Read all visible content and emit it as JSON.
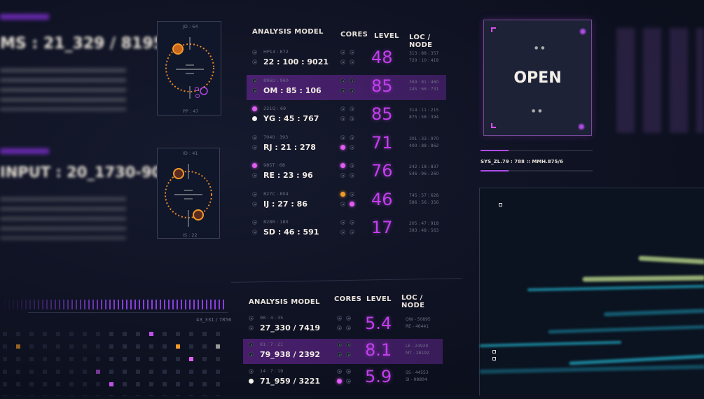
{
  "left": {
    "readout_1": "MS : 21_329 / 8195",
    "readout_2": "INPUT : 20_1730-90"
  },
  "radar_1": {
    "top_label": "JD : 64",
    "bottom_label": "PP : 47"
  },
  "radar_2": {
    "top_label": "ID : 41",
    "bottom_label": "IS : 22"
  },
  "table_1": {
    "headers": {
      "model": "ANALYSIS MODEL",
      "cores": "CORES",
      "level": "LEVEL",
      "loc": "LOC / NODE"
    },
    "rows": [
      {
        "code": "HP14 : 872",
        "model": "22 : 100 : 9021",
        "level": "48",
        "loc1": "313 : 88 : 357",
        "loc2": "720 : 10 : 418",
        "highlight": false,
        "bullets": [
          "off",
          "off"
        ],
        "cores": [
          "off",
          "off",
          "off",
          "off"
        ]
      },
      {
        "code": "896U : 960",
        "model": "OM : 85 : 106",
        "level": "85",
        "loc1": "369 : 81 : 460",
        "loc2": "245 : 66 : 731",
        "highlight": true,
        "bullets": [
          "off",
          "off"
        ],
        "cores": [
          "off",
          "off",
          "off",
          "off"
        ]
      },
      {
        "code": "221Q : 69",
        "model": "YG : 45 : 767",
        "level": "85",
        "loc1": "314 : 11 : 215",
        "loc2": "875 : 58 : 394",
        "highlight": false,
        "bullets": [
          "pink",
          "white"
        ],
        "cores": [
          "off",
          "off",
          "off",
          "off"
        ]
      },
      {
        "code": "7040 : 393",
        "model": "RJ : 21 : 278",
        "level": "71",
        "loc1": "301 : 33 : 970",
        "loc2": "400 : 88 : 862",
        "highlight": false,
        "bullets": [
          "off",
          "off"
        ],
        "cores": [
          "off",
          "off",
          "pink",
          "off"
        ]
      },
      {
        "code": "985T : 68",
        "model": "RE : 23 : 96",
        "level": "76",
        "loc1": "242 : 18 : 837",
        "loc2": "546 : 96 : 260",
        "highlight": false,
        "bullets": [
          "pink",
          "off"
        ],
        "cores": [
          "pink",
          "off",
          "off",
          "off"
        ]
      },
      {
        "code": "827C : 804",
        "model": "IJ : 27 : 86",
        "level": "46",
        "loc1": "745 : 57 : 628",
        "loc2": "586 : 56 : 356",
        "highlight": false,
        "bullets": [
          "off",
          "off"
        ],
        "cores": [
          "orange",
          "off",
          "off",
          "pink"
        ]
      },
      {
        "code": "828R : 180",
        "model": "SD : 46 : 591",
        "level": "17",
        "loc1": "205 : 47 : 918",
        "loc2": "393 : 48 : 563",
        "highlight": false,
        "bullets": [
          "off",
          "off"
        ],
        "cores": [
          "off",
          "off",
          "off",
          "off"
        ]
      }
    ]
  },
  "table_2": {
    "headers": {
      "model": "ANALYSIS MODEL",
      "cores": "CORES",
      "level": "LEVEL",
      "loc": "LOC / NODE"
    },
    "rows": [
      {
        "code": "98 : 4 : 35",
        "model": "27_330 / 7419",
        "level": "5.4",
        "loc1": "QW - 50895",
        "loc2": "RE - 46441",
        "highlight": false,
        "bullets": [
          "off",
          "off"
        ],
        "cores": [
          "off",
          "off",
          "off",
          "off"
        ]
      },
      {
        "code": "81 : 7 : 21",
        "model": "79_938 / 2392",
        "level": "8.1",
        "loc1": "LE - 24929",
        "loc2": "MT - 28192",
        "highlight": true,
        "bullets": [
          "off",
          "off"
        ],
        "cores": [
          "off",
          "off",
          "off",
          "off"
        ]
      },
      {
        "code": "14 : 7 : 19",
        "model": "71_959 / 3221",
        "level": "5.9",
        "loc1": "SS - 44553",
        "loc2": "SI - 98804",
        "highlight": false,
        "bullets": [
          "off",
          "white"
        ],
        "cores": [
          "off",
          "off",
          "pink",
          "off"
        ]
      }
    ]
  },
  "grid_panel": {
    "label": "43_331 / 7856"
  },
  "status_box": {
    "label": "OPEN"
  },
  "sys_readout": "SYS_ZL.79 : 788 :: MMH.875/6",
  "colors": {
    "accent_purple": "#c43ef0",
    "accent_pink": "#e05cf2",
    "accent_orange": "#f39a2a",
    "teal": "#1f9fb8",
    "lime": "#b9d68a",
    "background": "#0d1120"
  }
}
